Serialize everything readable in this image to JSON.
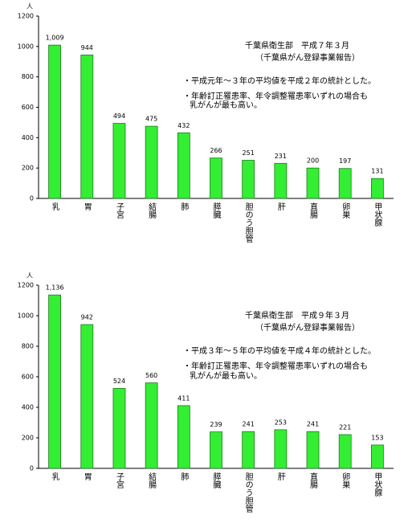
{
  "chart_data": [
    {
      "type": "bar",
      "y_label": "人",
      "categories": [
        "乳",
        "胃",
        "子宮",
        "結腸",
        "肺",
        "膵臓",
        "胆のう胆管",
        "肝",
        "直腸",
        "卵巣",
        "甲状腺"
      ],
      "values": [
        1009,
        944,
        494,
        475,
        432,
        266,
        251,
        231,
        200,
        197,
        131
      ],
      "value_labels": [
        "1,009",
        "944",
        "494",
        "475",
        "432",
        "266",
        "251",
        "231",
        "200",
        "197",
        "131"
      ],
      "color": "#33ee33",
      "ylim": [
        0,
        1200
      ],
      "yticks": [
        0,
        200,
        400,
        600,
        800,
        1000,
        1200
      ],
      "annotations": [
        "千葉県衛生部　平成７年３月",
        "（千葉県がん登録事業報告）",
        "・平成元年～３年の平均値を平成２年の統計とした。",
        "・年齢訂正罹患率、年令調整罹患率いずれの場合も",
        "乳がんが最も高い。"
      ]
    },
    {
      "type": "bar",
      "y_label": "人",
      "categories": [
        "乳",
        "胃",
        "子宮",
        "結腸",
        "肺",
        "膵臓",
        "胆のう胆管",
        "肝",
        "直腸",
        "卵巣",
        "甲状腺"
      ],
      "values": [
        1136,
        942,
        524,
        560,
        411,
        239,
        241,
        253,
        241,
        221,
        153
      ],
      "value_labels": [
        "1,136",
        "942",
        "524",
        "560",
        "411",
        "239",
        "241",
        "253",
        "241",
        "221",
        "153"
      ],
      "color": "#33ee33",
      "ylim": [
        0,
        1200
      ],
      "yticks": [
        0,
        200,
        400,
        600,
        800,
        1000,
        1200
      ],
      "annotations": [
        "千葉県衛生部　平成９年３月",
        "（千葉県がん登録事業報告）",
        "・平成３年～５年の平均値を平成４年の統計とした。",
        "・年齢訂正罹患率、年令調整罹患率いずれの場合も",
        "乳がんが最も高い。"
      ]
    }
  ]
}
